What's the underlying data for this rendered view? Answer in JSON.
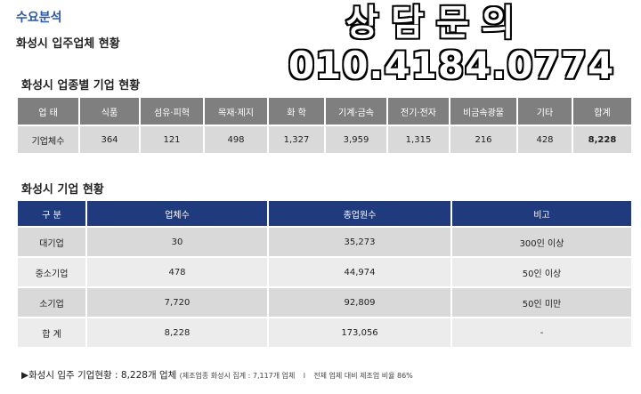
{
  "header": {
    "section": "수요분석",
    "title": "화성시 입주업체 현황"
  },
  "overlay": {
    "consult": "상담문의",
    "phone": "010.4184.0774"
  },
  "industry_table": {
    "title": "화성시 업종별 기업 현황",
    "headers": [
      "업 태",
      "식품",
      "섬유·피혁",
      "목재·제지",
      "화 학",
      "기계·금속",
      "전기·전자",
      "비금속광물",
      "기타",
      "합계"
    ],
    "row": [
      "기업체수",
      "364",
      "121",
      "498",
      "1,327",
      "3,959",
      "1,315",
      "216",
      "428",
      "8,228"
    ]
  },
  "size_table": {
    "title": "화성시 기업 현황",
    "headers": [
      "구 분",
      "업체수",
      "종업원수",
      "비고"
    ],
    "rows": [
      [
        "대기업",
        "30",
        "35,273",
        "300인 이상"
      ],
      [
        "중소기업",
        "478",
        "44,974",
        "50인 이상"
      ],
      [
        "소기업",
        "7,720",
        "92,809",
        "50인 미만"
      ],
      [
        "합 계",
        "8,228",
        "173,056",
        "-"
      ]
    ]
  },
  "footnote": {
    "main": "▶화성시 입주 기업현황 : 8,228개 업체",
    "note1": "(제조업종 화성시 집계 : 7,117개 업체",
    "sep": "l",
    "note2": "전체 업체 대비 제조업 비율  86%"
  }
}
